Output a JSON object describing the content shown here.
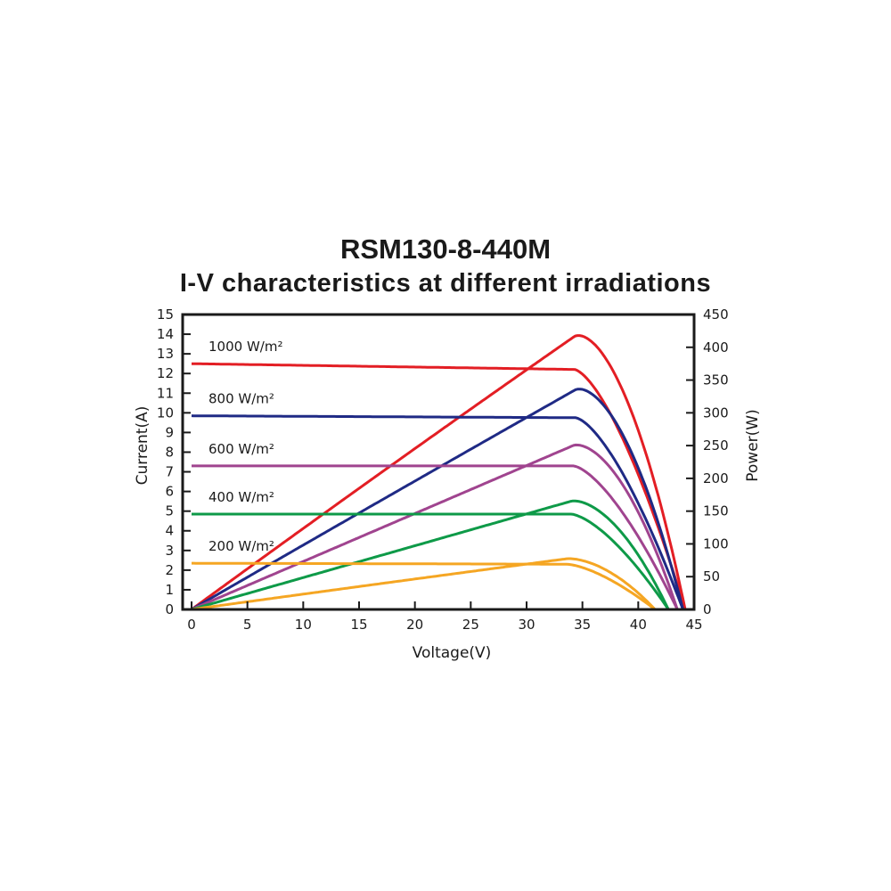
{
  "chart_data": {
    "type": "line",
    "title": "RSM130-8-440M",
    "subtitle": "I-V characteristics at different irradiations",
    "xlabel": "Voltage(V)",
    "ylabel": "Current(A)",
    "y2label": "Power(W)",
    "xlim": [
      0,
      45
    ],
    "ylim": [
      0,
      15
    ],
    "y2lim": [
      0,
      450
    ],
    "xticks": [
      "0",
      "5",
      "10",
      "15",
      "20",
      "25",
      "30",
      "35",
      "40",
      "45"
    ],
    "yticks": [
      "0",
      "1",
      "2",
      "3",
      "4",
      "5",
      "6",
      "7",
      "8",
      "9",
      "10",
      "11",
      "12",
      "13",
      "14",
      "15"
    ],
    "y2ticks": [
      "0",
      "50",
      "100",
      "150",
      "200",
      "250",
      "300",
      "350",
      "400",
      "450"
    ],
    "grid": false,
    "series": [
      {
        "name": "1000 W/m²",
        "color": "#e31e24",
        "Isc": 12.5,
        "Imp": 12.2,
        "Vmp": 35.9,
        "Voc": 44.2,
        "Pmax": 436
      },
      {
        "name": "800 W/m²",
        "color": "#1f2a85",
        "Isc": 9.85,
        "Imp": 9.75,
        "Vmp": 36.0,
        "Voc": 44.0,
        "Pmax": 351
      },
      {
        "name": "600 W/m²",
        "color": "#a0448f",
        "Isc": 7.3,
        "Imp": 7.3,
        "Vmp": 35.8,
        "Voc": 43.5,
        "Pmax": 262
      },
      {
        "name": "400 W/m²",
        "color": "#0e9a48",
        "Isc": 4.85,
        "Imp": 4.85,
        "Vmp": 35.6,
        "Voc": 42.7,
        "Pmax": 173
      },
      {
        "name": "200 W/m²",
        "color": "#f5a623",
        "Isc": 2.35,
        "Imp": 2.3,
        "Vmp": 35.2,
        "Voc": 41.5,
        "Pmax": 81
      }
    ]
  }
}
